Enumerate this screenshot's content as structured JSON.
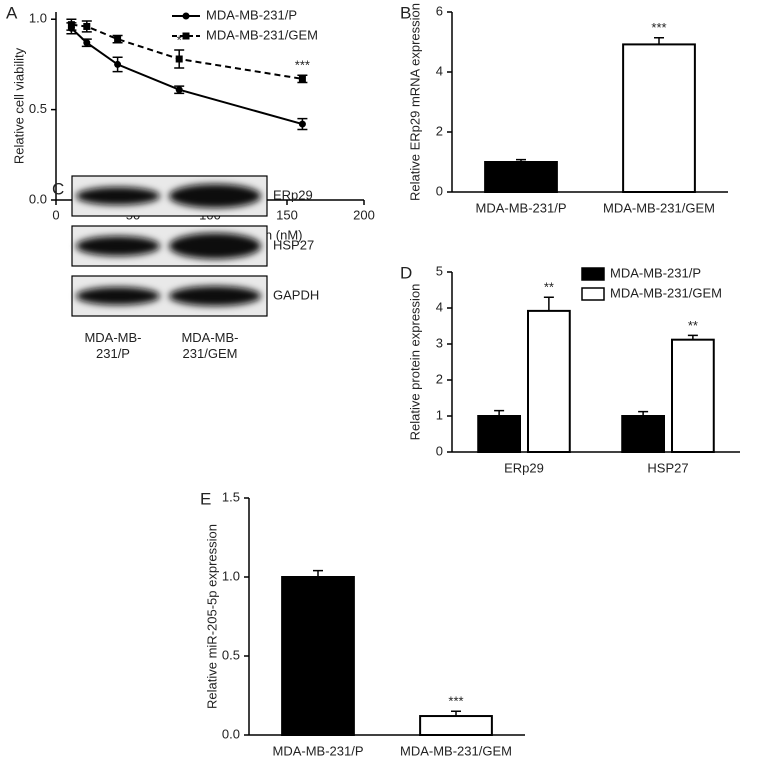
{
  "chart_data": [
    {
      "type": "line",
      "panel_label": "A",
      "xlabel": "Gemcitabine concentration (nM)",
      "ylabel": "Relative cell viability",
      "x": [
        10,
        20,
        40,
        80,
        160
      ],
      "xlim": [
        0,
        200
      ],
      "xticks": [
        0,
        50,
        100,
        150,
        200
      ],
      "ylim": [
        0,
        1.04
      ],
      "yticks": [
        {
          "value": 0,
          "label": "0.0"
        },
        {
          "value": 0.5,
          "label": "0.5"
        },
        {
          "value": 1,
          "label": "1.0"
        }
      ],
      "legend": "upper center",
      "series": [
        {
          "name": "MDA-MB-231/P",
          "color": "#000000",
          "line_style": "solid",
          "marker": "circle",
          "values": [
            0.95,
            0.87,
            0.75,
            0.61,
            0.42
          ],
          "errors": [
            0.03,
            0.02,
            0.04,
            0.02,
            0.03
          ]
        },
        {
          "name": "MDA-MB-231/GEM",
          "color": "#000000",
          "line_style": "dashed",
          "marker": "square",
          "values": [
            0.97,
            0.96,
            0.89,
            0.78,
            0.67
          ],
          "errors": [
            0.03,
            0.03,
            0.02,
            0.05,
            0.02
          ],
          "annotations": [
            null,
            null,
            null,
            "*",
            "***"
          ]
        }
      ]
    },
    {
      "type": "bar",
      "panel_label": "B",
      "ylabel": "Relative ERp29 mRNA expression",
      "categories": [
        "MDA-MB-231/P",
        "MDA-MB-231/GEM"
      ],
      "values": [
        1.0,
        4.92
      ],
      "errors": [
        0.08,
        0.22
      ],
      "annotations": [
        null,
        "***"
      ],
      "colors": [
        "#000000",
        "#ffffff"
      ],
      "ylim": [
        0,
        6
      ],
      "yticks": [
        0,
        2,
        4,
        6
      ]
    },
    {
      "type": "grouped_bar",
      "panel_label": "D",
      "ylabel": "Relative protein expression",
      "categories": [
        "ERp29",
        "HSP27"
      ],
      "legend": "upper right",
      "series": [
        {
          "name": "MDA-MB-231/P",
          "color": "#000000",
          "values": [
            1.0,
            1.0
          ],
          "errors": [
            0.15,
            0.12
          ]
        },
        {
          "name": "MDA-MB-231/GEM",
          "color": "#ffffff",
          "values": [
            3.92,
            3.12
          ],
          "errors": [
            0.38,
            0.12
          ],
          "annotations": [
            "**",
            "**"
          ]
        }
      ],
      "ylim": [
        0,
        5
      ],
      "yticks": [
        0,
        1,
        2,
        3,
        4,
        5
      ]
    },
    {
      "type": "bar",
      "panel_label": "E",
      "ylabel": "Relative miR-205-5p expression",
      "categories": [
        "MDA-MB-231/P",
        "MDA-MB-231/GEM"
      ],
      "values": [
        1.0,
        0.12
      ],
      "errors": [
        0.04,
        0.03
      ],
      "annotations": [
        null,
        "***"
      ],
      "colors": [
        "#000000",
        "#ffffff"
      ],
      "ylim": [
        0,
        1.5
      ],
      "yticks": [
        {
          "value": 0,
          "label": "0.0"
        },
        {
          "value": 0.5,
          "label": "0.5"
        },
        {
          "value": 1,
          "label": "1.0"
        },
        {
          "value": 1.5,
          "label": "1.5"
        }
      ]
    }
  ],
  "blot": {
    "panel_label": "C",
    "rows": [
      "ERp29",
      "HSP27",
      "GAPDH"
    ],
    "lanes": [
      "MDA-MB-231/P",
      "MDA-MB-231/GEM"
    ]
  }
}
